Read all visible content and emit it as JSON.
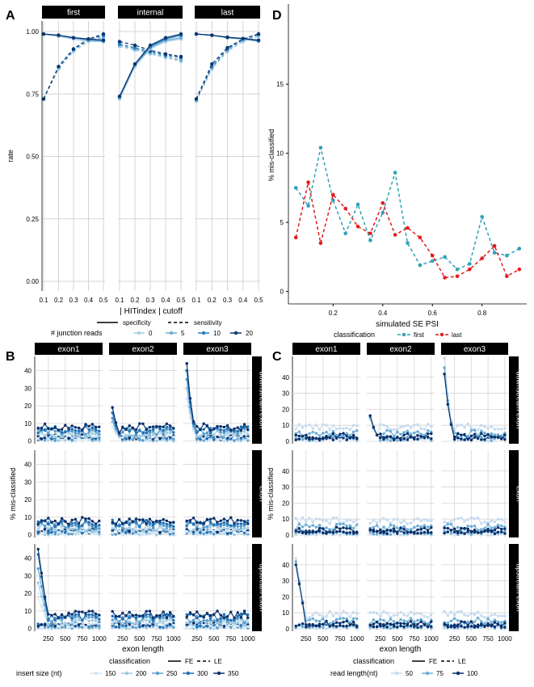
{
  "colors": {
    "strip_bg": "#000000",
    "strip_text": "#ffffff",
    "panel_bg": "#ffffff",
    "grid": "#d4d4d4",
    "axis": "#000000",
    "blues4": [
      "#a8cde6",
      "#6baed6",
      "#2b7bba",
      "#0b3673"
    ],
    "blues5": [
      "#d3e6f4",
      "#9ecae1",
      "#5a9dcc",
      "#2171b5",
      "#08306b"
    ],
    "blues3": [
      "#c6dbef",
      "#6baed6",
      "#08306b"
    ],
    "first": "#2fa1b7",
    "last": "#e41a1c"
  },
  "chart_data": [
    {
      "id": "A",
      "type": "line",
      "panel_label": "A",
      "facets": [
        "first",
        "internal",
        "last"
      ],
      "xlabel": "| HITindex | cutoff",
      "ylabel": "rate",
      "x": [
        0.1,
        0.2,
        0.3,
        0.4,
        0.5
      ],
      "xticks": [
        "0.1",
        "0.2",
        "0.3",
        "0.4",
        "0.5"
      ],
      "ylim": [
        0,
        1.0
      ],
      "yticks": [
        0.0,
        0.25,
        0.5,
        0.75,
        1.0
      ],
      "ytick_labels": [
        "0.00",
        "0.25",
        "0.50",
        "0.75",
        "1.00"
      ],
      "grid": true,
      "metrics": {
        "specificity": "solid",
        "sensitivity": "dashed"
      },
      "legend_metric_labels": [
        "specificity",
        "sensitivity"
      ],
      "legend_title": "# junction reads",
      "legend_levels": [
        "0",
        "5",
        "10",
        "20"
      ],
      "series": {
        "first": {
          "specificity": [
            [
              0.99,
              0.98,
              0.97,
              0.96,
              0.96
            ],
            [
              0.99,
              0.985,
              0.975,
              0.965,
              0.96
            ],
            [
              0.99,
              0.985,
              0.975,
              0.97,
              0.965
            ],
            [
              0.99,
              0.985,
              0.975,
              0.97,
              0.965
            ]
          ],
          "sensitivity": [
            [
              0.73,
              0.85,
              0.92,
              0.96,
              0.975
            ],
            [
              0.73,
              0.855,
              0.925,
              0.965,
              0.98
            ],
            [
              0.73,
              0.86,
              0.93,
              0.97,
              0.985
            ],
            [
              0.73,
              0.86,
              0.93,
              0.97,
              0.99
            ]
          ]
        },
        "internal": {
          "specificity": [
            [
              0.73,
              0.86,
              0.93,
              0.96,
              0.97
            ],
            [
              0.735,
              0.865,
              0.935,
              0.965,
              0.975
            ],
            [
              0.74,
              0.87,
              0.94,
              0.97,
              0.985
            ],
            [
              0.74,
              0.87,
              0.945,
              0.975,
              0.99
            ]
          ],
          "sensitivity": [
            [
              0.94,
              0.925,
              0.91,
              0.895,
              0.88
            ],
            [
              0.945,
              0.93,
              0.915,
              0.9,
              0.885
            ],
            [
              0.95,
              0.935,
              0.92,
              0.905,
              0.895
            ],
            [
              0.96,
              0.945,
              0.925,
              0.91,
              0.9
            ]
          ]
        },
        "last": {
          "specificity": [
            [
              0.99,
              0.985,
              0.975,
              0.97,
              0.96
            ],
            [
              0.99,
              0.985,
              0.975,
              0.97,
              0.962
            ],
            [
              0.99,
              0.985,
              0.977,
              0.972,
              0.965
            ],
            [
              0.99,
              0.985,
              0.977,
              0.972,
              0.965
            ]
          ],
          "sensitivity": [
            [
              0.72,
              0.85,
              0.92,
              0.96,
              0.98
            ],
            [
              0.725,
              0.855,
              0.925,
              0.965,
              0.985
            ],
            [
              0.73,
              0.86,
              0.93,
              0.97,
              0.99
            ],
            [
              0.73,
              0.87,
              0.935,
              0.97,
              0.99
            ]
          ]
        }
      }
    },
    {
      "id": "D",
      "type": "line",
      "panel_label": "D",
      "xlabel": "simulated SE PSI",
      "ylabel": "% mis-classified",
      "xlim": [
        0.02,
        0.98
      ],
      "xticks": [
        0.2,
        0.4,
        0.6,
        0.8
      ],
      "ylim": [
        -0.9,
        20.8
      ],
      "yticks": [
        0,
        5,
        10,
        15
      ],
      "legend_title": "classification",
      "series": [
        {
          "name": "first",
          "x": [
            0.05,
            0.1,
            0.15,
            0.2,
            0.25,
            0.3,
            0.35,
            0.4,
            0.45,
            0.5,
            0.55,
            0.6,
            0.65,
            0.7,
            0.75,
            0.8,
            0.85,
            0.9,
            0.95
          ],
          "y": [
            7.5,
            6.2,
            10.4,
            6.6,
            4.2,
            6.3,
            3.7,
            5.7,
            8.6,
            3.5,
            1.9,
            2.2,
            2.5,
            1.6,
            2.0,
            5.4,
            2.8,
            2.6,
            3.1
          ]
        },
        {
          "name": "last",
          "x": [
            0.05,
            0.1,
            0.15,
            0.2,
            0.25,
            0.3,
            0.35,
            0.4,
            0.45,
            0.5,
            0.55,
            0.6,
            0.65,
            0.7,
            0.75,
            0.8,
            0.85,
            0.9,
            0.95
          ],
          "y": [
            3.9,
            7.9,
            3.5,
            7.0,
            6.0,
            4.7,
            4.2,
            6.4,
            4.1,
            4.6,
            3.9,
            2.6,
            1.0,
            1.1,
            1.6,
            2.4,
            3.3,
            1.1,
            1.6
          ]
        }
      ]
    },
    {
      "id": "B",
      "type": "line",
      "panel_label": "B",
      "col_facets": [
        "exon1",
        "exon2",
        "exon3"
      ],
      "row_facets": [
        "downstream exon",
        "exon",
        "upstream exon"
      ],
      "xlabel": "exon length",
      "ylabel": "% mis-classified",
      "x": [
        100,
        150,
        200,
        250,
        300,
        350,
        400,
        450,
        500,
        550,
        600,
        650,
        700,
        750,
        800,
        850,
        900,
        950,
        1000
      ],
      "xticks": [
        250,
        500,
        750,
        1000
      ],
      "xlim": [
        50,
        1050
      ],
      "ylim": [
        -1.5,
        48
      ],
      "yticks": [
        0,
        10,
        20,
        30,
        40
      ],
      "grid": true,
      "classification_styles": {
        "FE": "solid",
        "LE": "dashed"
      },
      "legend_classification_title": "classification",
      "legend_classification_labels": [
        "FE",
        "LE"
      ],
      "legend_title": "insert size (nt)",
      "legend_levels": [
        "150",
        "200",
        "250",
        "300",
        "350"
      ],
      "spikes": {
        "exon1": {
          "upstream exon": [
            18,
            26,
            34,
            42,
            45
          ]
        },
        "exon2": {
          "downstream exon": [
            8,
            11,
            13,
            16,
            19
          ]
        },
        "exon3": {
          "downstream exon": [
            24,
            30,
            35,
            40,
            44
          ]
        }
      },
      "base_level": {
        "FE": [
          2.5,
          4.0,
          5.5,
          6.5,
          8.0
        ],
        "LE": [
          0.5,
          1.0,
          1.5,
          2.0,
          2.5
        ]
      }
    },
    {
      "id": "C",
      "type": "line",
      "panel_label": "C",
      "col_facets": [
        "exon1",
        "exon2",
        "exon3"
      ],
      "row_facets": [
        "downstream exon",
        "exon",
        "upstream exon"
      ],
      "xlabel": "exon length",
      "ylabel": "% mis-classified",
      "x": [
        100,
        150,
        200,
        250,
        300,
        350,
        400,
        450,
        500,
        550,
        600,
        650,
        700,
        750,
        800,
        850,
        900,
        950,
        1000
      ],
      "xticks": [
        250,
        500,
        750,
        1000
      ],
      "xlim": [
        50,
        1050
      ],
      "ylim": [
        -1.5,
        53
      ],
      "yticks": [
        0,
        10,
        20,
        30,
        40
      ],
      "grid": true,
      "classification_styles": {
        "FE": "solid",
        "LE": "dashed"
      },
      "legend_classification_title": "classification",
      "legend_classification_labels": [
        "FE",
        "LE"
      ],
      "legend_title": "read length(nt)",
      "legend_levels": [
        "50",
        "75",
        "100"
      ],
      "spikes": {
        "exon1": {
          "upstream exon": [
            44,
            42,
            40
          ]
        },
        "exon2": {
          "downstream exon": [
            14,
            15,
            16
          ]
        },
        "exon3": {
          "downstream exon": [
            52,
            46,
            42
          ]
        }
      },
      "base_level": {
        "FE": [
          9.0,
          5.0,
          3.0
        ],
        "LE": [
          1.0,
          1.5,
          2.0
        ]
      }
    }
  ]
}
